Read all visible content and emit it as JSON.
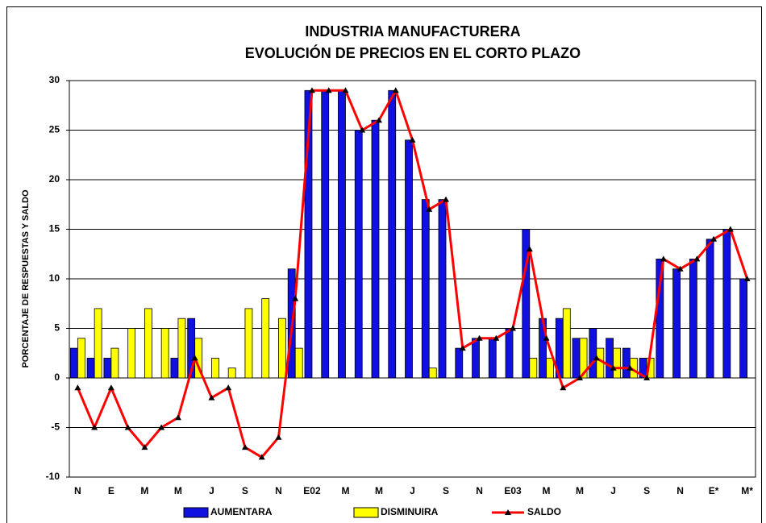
{
  "chart_data": {
    "type": "bar",
    "title": "INDUSTRIA MANUFACTURERA",
    "subtitle": "EVOLUCIÓN DE PRECIOS EN EL CORTO PLAZO",
    "y_label": "PORCENTAJE DE RESPUESTAS Y SALDO",
    "categories": [
      "N",
      null,
      "E",
      null,
      "M",
      null,
      "M",
      null,
      "J",
      null,
      "S",
      null,
      "N",
      null,
      "E02",
      null,
      "M",
      null,
      "M",
      null,
      "J",
      null,
      "S",
      null,
      "N",
      null,
      "E03",
      null,
      "M",
      null,
      "M",
      null,
      "J",
      null,
      "S",
      null,
      "N",
      null,
      "E*",
      null,
      "M*"
    ],
    "series": [
      {
        "name": "AUMENTARA",
        "type": "bar",
        "color": "#1010e0",
        "values": [
          3,
          2,
          2,
          0,
          0,
          0,
          2,
          6,
          0,
          0,
          0,
          0,
          0,
          11,
          29,
          29,
          29,
          25,
          26,
          29,
          24,
          18,
          18,
          3,
          4,
          4,
          5,
          15,
          6,
          6,
          4,
          5,
          4,
          3,
          2,
          12,
          11,
          12,
          14,
          15,
          10
        ]
      },
      {
        "name": "DISMINUIRA",
        "type": "bar",
        "color": "#ffff00",
        "values": [
          4,
          7,
          3,
          5,
          7,
          5,
          6,
          4,
          2,
          1,
          7,
          8,
          6,
          3,
          0,
          0,
          0,
          0,
          0,
          0,
          0,
          1,
          0,
          0,
          0,
          0,
          0,
          2,
          2,
          7,
          4,
          3,
          3,
          2,
          2,
          0,
          0,
          0,
          0,
          0,
          0
        ]
      },
      {
        "name": "SALDO",
        "type": "line",
        "color": "#ff0000",
        "values": [
          -1,
          -5,
          -1,
          -5,
          -7,
          -5,
          -4,
          2,
          -2,
          -1,
          -7,
          -8,
          -6,
          8,
          29,
          29,
          29,
          25,
          26,
          29,
          24,
          17,
          18,
          3,
          4,
          4,
          5,
          13,
          4,
          -1,
          0,
          2,
          1,
          1,
          0,
          12,
          11,
          12,
          14,
          15,
          10
        ]
      }
    ],
    "ylim": [
      -10,
      30
    ],
    "yticks": [
      -10,
      -5,
      0,
      5,
      10,
      15,
      20,
      25,
      30
    ],
    "grid": true,
    "legend": "bottom"
  }
}
